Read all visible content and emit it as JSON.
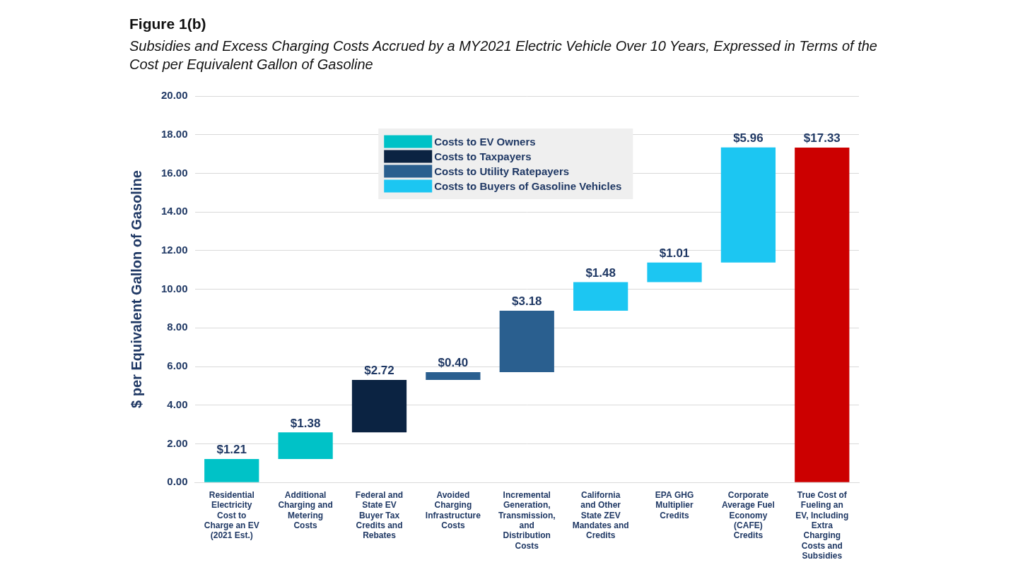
{
  "chart_data": {
    "type": "waterfall",
    "title": "Figure 1(b)",
    "subtitle": "Subsidies and Excess Charging Costs Accrued by a MY2021 Electric Vehicle Over 10 Years, Expressed in Terms of the Cost per Equivalent Gallon of Gasoline",
    "y_label": "$ per Equivalent Gallon of Gasoline",
    "categories": [
      "Residential Electricity Cost to Charge an EV (2021 Est.)",
      "Additional Charging and Metering Costs",
      "Federal and State EV Buyer Tax Credits and Rebates",
      "Avoided Charging Infrastructure Costs",
      "Incremental Generation, Transmission, and Distribution Costs",
      "California and Other State ZEV Mandates and Credits",
      "EPA GHG Multiplier Credits",
      "Corporate Average Fuel Economy (CAFE) Credits",
      "True Cost of Fueling an EV, Including Extra Charging Costs and Subsidies"
    ],
    "series": [
      {
        "name": "Costs to EV Owners",
        "color": "#00c2c7",
        "values": [
          1.21,
          1.38,
          null,
          null,
          null,
          null,
          null,
          null,
          null
        ],
        "value_labels": [
          "$1.21",
          "$1.38",
          null,
          null,
          null,
          null,
          null,
          null,
          null
        ]
      },
      {
        "name": "Costs to Taxpayers",
        "color": "#0b2342",
        "values": [
          null,
          null,
          2.72,
          null,
          null,
          null,
          null,
          null,
          null
        ],
        "value_labels": [
          null,
          null,
          "$2.72",
          null,
          null,
          null,
          null,
          null,
          null
        ]
      },
      {
        "name": "Costs to Utility Ratepayers",
        "color": "#2a5f8f",
        "values": [
          null,
          null,
          null,
          0.4,
          3.18,
          null,
          null,
          null,
          null
        ],
        "value_labels": [
          null,
          null,
          null,
          "$0.40",
          "$3.18",
          null,
          null,
          null,
          null
        ]
      },
      {
        "name": "Costs to Buyers of Gasoline Vehicles",
        "color": "#1cc6f2",
        "values": [
          null,
          null,
          null,
          null,
          null,
          1.48,
          1.01,
          5.96,
          null
        ],
        "value_labels": [
          null,
          null,
          null,
          null,
          null,
          "$1.48",
          "$1.01",
          "$5.96",
          null
        ]
      }
    ],
    "total": {
      "value": 17.33,
      "value_label": "$17.33",
      "color": "#cc0000"
    },
    "ylim": [
      0,
      20
    ],
    "yticks": [
      {
        "value": 0,
        "label": "0.00"
      },
      {
        "value": 2,
        "label": "2.00"
      },
      {
        "value": 4,
        "label": "4.00"
      },
      {
        "value": 6,
        "label": "6.00"
      },
      {
        "value": 8,
        "label": "8.00"
      },
      {
        "value": 10,
        "label": "10.00"
      },
      {
        "value": 12,
        "label": "12.00"
      },
      {
        "value": 14,
        "label": "14.00"
      },
      {
        "value": 16,
        "label": "16.00"
      },
      {
        "value": 18,
        "label": "18.00"
      },
      {
        "value": 20,
        "label": "20.00"
      }
    ],
    "grid": true,
    "legend": "top",
    "data_labels": true
  }
}
